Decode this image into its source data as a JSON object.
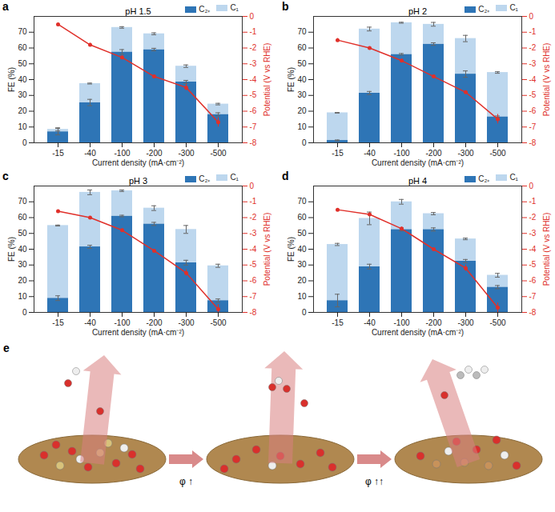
{
  "chart_data": [
    {
      "type": "bar",
      "panel_label": "a",
      "title": "pH 1.5",
      "x_label": "Current density (mA·cm⁻²)",
      "y_label": "FE (%)",
      "y2_label": "Potential (V vs RHE)",
      "categories": [
        "-15",
        "-40",
        "-100",
        "-200",
        "-300",
        "-500"
      ],
      "stacked": true,
      "legend": "top-right",
      "ylim": [
        0,
        80
      ],
      "yticks": [
        0,
        10,
        20,
        30,
        40,
        50,
        60,
        70
      ],
      "y2lim": [
        -8,
        0
      ],
      "y2ticks": [
        -8,
        -7,
        -6,
        -5,
        -4,
        -3,
        -2,
        -1,
        0
      ],
      "series": [
        {
          "name": "C₂₊",
          "color": "#2e75b6",
          "values": [
            7,
            25.5,
            57.5,
            59,
            38.5,
            18
          ],
          "errors": [
            2,
            2,
            1.5,
            0.8,
            1,
            1
          ]
        },
        {
          "name": "C₁",
          "color": "#bdd7ee",
          "values": [
            1.5,
            12,
            15.5,
            10,
            10,
            6.5
          ],
          "errors": [
            1,
            0.3,
            0.5,
            0.6,
            0.8,
            0.5
          ]
        },
        {
          "type": "line",
          "axis": "y2",
          "color": "#e0302a",
          "marker": "circle",
          "values": [
            -0.5,
            -1.8,
            -2.6,
            -3.8,
            -4.5,
            -6.7
          ],
          "errors": [
            0.05,
            0.1,
            0.1,
            0.1,
            0.2,
            0.3
          ]
        }
      ]
    },
    {
      "type": "bar",
      "panel_label": "b",
      "title": "pH 2",
      "x_label": "Current density (mA·cm⁻²)",
      "y_label": "FE (%)",
      "y2_label": "Potential (V vs RHE)",
      "categories": [
        "-15",
        "-40",
        "-100",
        "-200",
        "-300",
        "-500"
      ],
      "stacked": true,
      "legend": "top-right",
      "ylim": [
        0,
        80
      ],
      "yticks": [
        0,
        10,
        20,
        30,
        40,
        50,
        60,
        70
      ],
      "y2lim": [
        -8,
        0
      ],
      "y2ticks": [
        -8,
        -7,
        -6,
        -5,
        -4,
        -3,
        -2,
        -1,
        0
      ],
      "series": [
        {
          "name": "C₂₊",
          "color": "#2e75b6",
          "values": [
            1.5,
            31.5,
            56,
            62.5,
            43.5,
            16.5
          ],
          "errors": [
            0.3,
            1,
            0.5,
            0.8,
            2,
            0.5
          ]
        },
        {
          "name": "C₁",
          "color": "#bdd7ee",
          "values": [
            17.5,
            40.5,
            20,
            12.5,
            22.5,
            28
          ],
          "errors": [
            0.2,
            1.2,
            0.3,
            1.2,
            2,
            0.5
          ]
        },
        {
          "type": "line",
          "axis": "y2",
          "color": "#e0302a",
          "marker": "circle",
          "values": [
            -1.5,
            -2.0,
            -2.8,
            -3.8,
            -4.8,
            -6.5
          ],
          "errors": [
            0.1,
            0.05,
            0.1,
            0.1,
            0.1,
            0.3
          ]
        }
      ]
    },
    {
      "type": "bar",
      "panel_label": "c",
      "title": "pH 3",
      "x_label": "Current density (mA·cm⁻²)",
      "y_label": "FE (%)",
      "y2_label": "Potential (V vs RHE)",
      "categories": [
        "-15",
        "-40",
        "-100",
        "-200",
        "-300",
        "-500"
      ],
      "stacked": true,
      "legend": "top-right",
      "ylim": [
        0,
        80
      ],
      "yticks": [
        0,
        10,
        20,
        30,
        40,
        50,
        60,
        70
      ],
      "y2lim": [
        -8,
        0
      ],
      "y2ticks": [
        -8,
        -7,
        -6,
        -5,
        -4,
        -3,
        -2,
        -1,
        0
      ],
      "series": [
        {
          "name": "C₂₊",
          "color": "#2e75b6",
          "values": [
            9,
            41.5,
            61,
            56,
            31.5,
            7.5
          ],
          "errors": [
            1.5,
            1,
            0.5,
            1,
            1.5,
            1
          ]
        },
        {
          "name": "C₁",
          "color": "#bdd7ee",
          "values": [
            46,
            34.5,
            16,
            10,
            21,
            22
          ],
          "errors": [
            0.3,
            1.5,
            0.5,
            1.5,
            2.5,
            1
          ]
        },
        {
          "type": "line",
          "axis": "y2",
          "color": "#e0302a",
          "marker": "circle",
          "values": [
            -1.6,
            -2.0,
            -2.8,
            -4.1,
            -5.5,
            -7.8
          ],
          "errors": [
            0.05,
            0.05,
            0.1,
            0.1,
            0.2,
            0.3
          ]
        }
      ]
    },
    {
      "type": "bar",
      "panel_label": "d",
      "title": "pH 4",
      "x_label": "Current density (mA·cm⁻²)",
      "y_label": "FE (%)",
      "y2_label": "Potential (V vs RHE)",
      "categories": [
        "-15",
        "-40",
        "-100",
        "-200",
        "-300",
        "-500"
      ],
      "stacked": true,
      "legend": "top-right",
      "ylim": [
        0,
        80
      ],
      "yticks": [
        0,
        10,
        20,
        30,
        40,
        50,
        60,
        70
      ],
      "y2lim": [
        -8,
        0
      ],
      "y2ticks": [
        -8,
        -7,
        -6,
        -5,
        -4,
        -3,
        -2,
        -1,
        0
      ],
      "series": [
        {
          "name": "C₂₊",
          "color": "#2e75b6",
          "values": [
            7.5,
            29,
            52.5,
            52.5,
            32.5,
            16
          ],
          "errors": [
            4,
            1.5,
            1,
            1,
            1,
            1
          ]
        },
        {
          "name": "C₁",
          "color": "#bdd7ee",
          "values": [
            35.5,
            30.5,
            17.5,
            10,
            14,
            7.5
          ],
          "errors": [
            0.7,
            4,
            1.5,
            0.7,
            0.5,
            1.2
          ]
        },
        {
          "type": "line",
          "axis": "y2",
          "color": "#e0302a",
          "marker": "circle",
          "values": [
            -1.5,
            -1.8,
            -2.7,
            -4.0,
            -5.2,
            -7.7
          ],
          "errors": [
            0.05,
            0.05,
            0.1,
            0.1,
            0.2,
            0.3
          ]
        }
      ]
    }
  ],
  "diagram": {
    "panel_label": "e",
    "steps": [
      "φ ↑",
      "φ ↑↑"
    ]
  }
}
